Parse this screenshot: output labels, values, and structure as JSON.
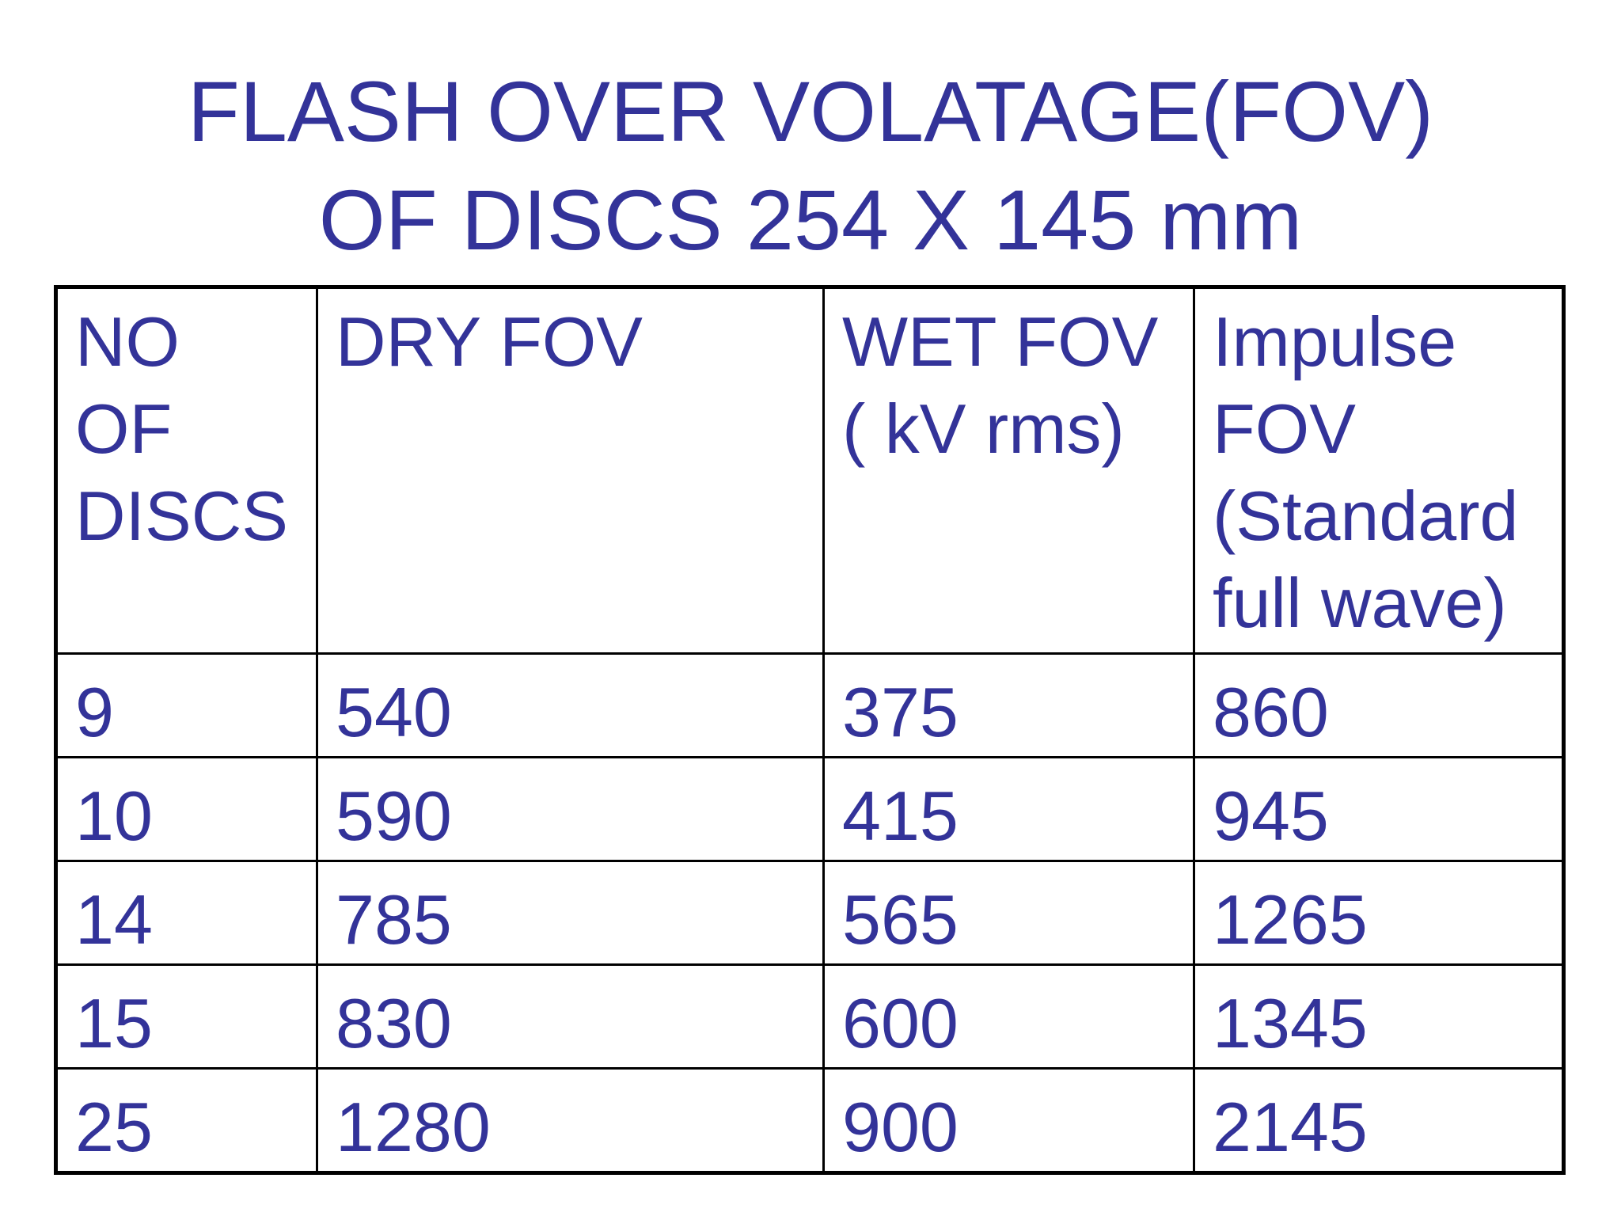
{
  "title": {
    "line1": "FLASH OVER VOLATAGE(FOV)",
    "line2": "OF DISCS 254 X 145 mm"
  },
  "table": {
    "headers": [
      {
        "lines": [
          "NO",
          "OF",
          "DISCS"
        ]
      },
      {
        "lines": [
          "DRY FOV"
        ]
      },
      {
        "lines": [
          "WET FOV",
          "( kV rms)"
        ]
      },
      {
        "lines": [
          "Impulse",
          "FOV",
          "(Standard",
          "full wave)"
        ]
      }
    ],
    "rows": [
      [
        "9",
        "540",
        "375",
        "860"
      ],
      [
        "10",
        "590",
        "415",
        "945"
      ],
      [
        "14",
        "785",
        "565",
        "1265"
      ],
      [
        "15",
        "830",
        "600",
        "1345"
      ],
      [
        "25",
        "1280",
        "900",
        "2145"
      ]
    ]
  },
  "colors": {
    "text": "#333399",
    "border": "#000000",
    "background": "#ffffff"
  }
}
